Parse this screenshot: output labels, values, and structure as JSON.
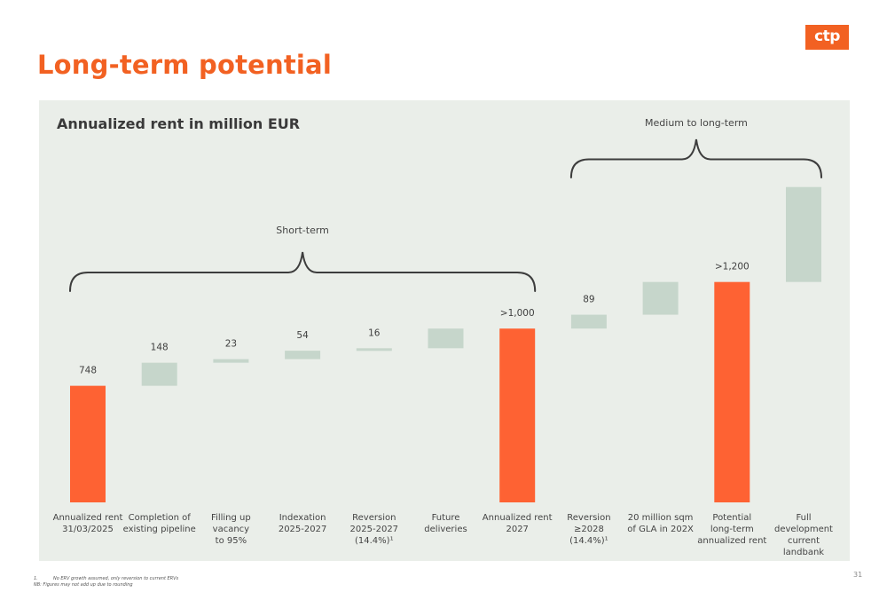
{
  "page": {
    "title": "Long-term potential",
    "logo_text": "ctp",
    "page_number": "31"
  },
  "footnotes": {
    "note1_number": "1.",
    "note1_text": "No ERV growth assumed, only reversion to current ERVs",
    "note2_text": "NB: Figures may not add up due to rounding"
  },
  "colors": {
    "accent": "#f26122",
    "bar_total": "#fe6233",
    "bar_increment": "#c6d6cb",
    "panel": "#eaeee9",
    "brace": "#3d3d3d"
  },
  "chart_data": {
    "type": "bar",
    "subtype": "waterfall",
    "title": "Annualized rent in million EUR",
    "categories": [
      [
        "Annualized rent",
        "31/03/2025"
      ],
      [
        "Completion of",
        "existing pipeline"
      ],
      [
        "Filling up",
        "vacancy",
        "to 95%"
      ],
      [
        "Indexation",
        "2025-2027"
      ],
      [
        "Reversion",
        "2025-2027",
        "(14.4%)¹"
      ],
      [
        "Future",
        "deliveries"
      ],
      [
        "Annualized rent",
        "2027"
      ],
      [
        "Reversion",
        "≥2028",
        "(14.4%)¹"
      ],
      [
        "20 million sqm",
        "of GLA in 202X"
      ],
      [
        "Potential",
        "long-term",
        "annualized rent"
      ],
      [
        "Full",
        "development",
        "current",
        "landbank"
      ]
    ],
    "bars": [
      {
        "kind": "total",
        "start": 0,
        "end": 748,
        "label": "748"
      },
      {
        "kind": "increment",
        "start": 748,
        "end": 896,
        "label": "148"
      },
      {
        "kind": "increment",
        "start": 896,
        "end": 919,
        "label": "23"
      },
      {
        "kind": "increment",
        "start": 919,
        "end": 973,
        "label": "54"
      },
      {
        "kind": "increment",
        "start": 973,
        "end": 989,
        "label": "16"
      },
      {
        "kind": "increment",
        "start": 989,
        "end": 1115,
        "label": ""
      },
      {
        "kind": "total",
        "start": 0,
        "end": 1115,
        "label": ">1,000"
      },
      {
        "kind": "increment",
        "start": 1115,
        "end": 1204,
        "label": "89"
      },
      {
        "kind": "increment",
        "start": 1204,
        "end": 1414,
        "label": ""
      },
      {
        "kind": "total",
        "start": 0,
        "end": 1414,
        "label": ">1,200"
      },
      {
        "kind": "increment",
        "start": 1414,
        "end": 2023,
        "label": ""
      }
    ],
    "ylim": [
      0,
      2050
    ],
    "annotations": [
      {
        "text": "Short-term",
        "from_index": 0,
        "to_index": 6
      },
      {
        "text": "Medium to long-term",
        "from_index": 7,
        "to_index": 10
      }
    ]
  }
}
